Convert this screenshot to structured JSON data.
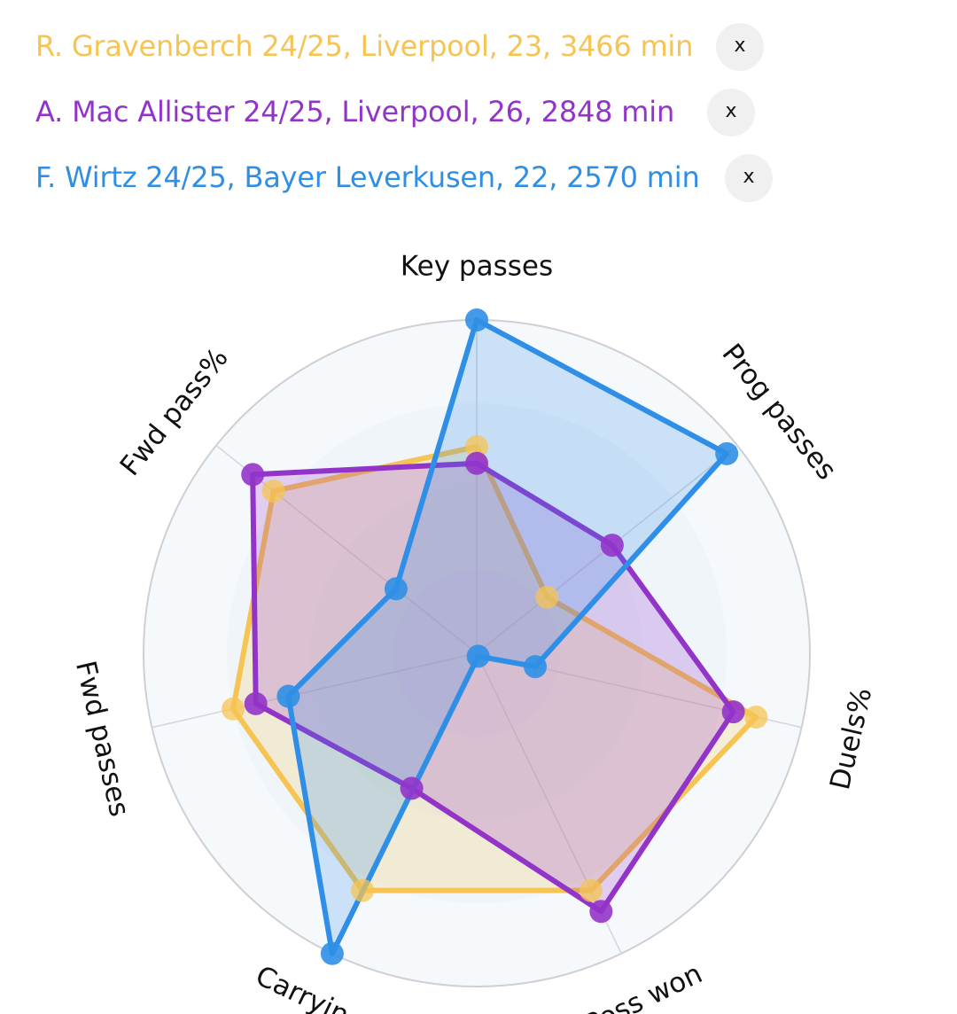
{
  "players": [
    {
      "label": "R. Gravenberch 24/25, Liverpool, 23, 3466 min",
      "color": "#f6c453",
      "remove_label": "x"
    },
    {
      "label": "A. Mac Allister 24/25, Liverpool, 26, 2848 min",
      "color": "#9334c9",
      "remove_label": "x"
    },
    {
      "label": "F. Wirtz 24/25, Bayer Leverkusen, 22, 2570 min",
      "color": "#2f8fe6",
      "remove_label": "x"
    }
  ],
  "chart_data": {
    "type": "radar",
    "axes": [
      "Key passes",
      "Prog passes",
      "Duels%",
      "Poss won",
      "Carrying",
      "Fwd passes",
      "Fwd pass%"
    ],
    "range": [
      0,
      100
    ],
    "rings": 4,
    "series": [
      {
        "name": "R. Gravenberch 24/25",
        "color": "#f6c453",
        "values": [
          62,
          27,
          86,
          79,
          79,
          75,
          78
        ]
      },
      {
        "name": "A. Mac Allister 24/25",
        "color": "#9334c9",
        "values": [
          57,
          52,
          79,
          86,
          45,
          68,
          86
        ]
      },
      {
        "name": "F. Wirtz 24/25",
        "color": "#2f8fe6",
        "values": [
          100,
          96,
          18,
          1,
          100,
          58,
          31
        ]
      }
    ]
  }
}
